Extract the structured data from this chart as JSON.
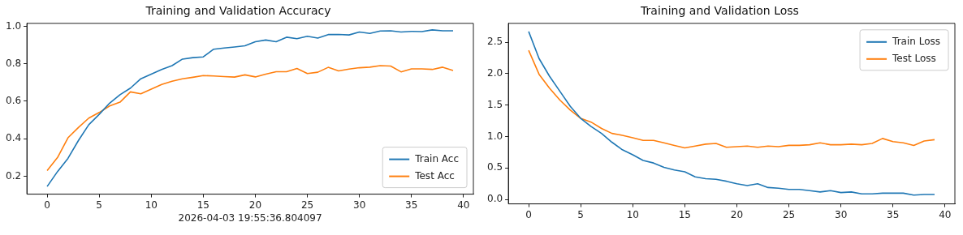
{
  "chart_data": [
    {
      "type": "line",
      "title": "Training and Validation Accuracy",
      "x": [
        0,
        1,
        2,
        3,
        4,
        5,
        6,
        7,
        8,
        9,
        10,
        11,
        12,
        13,
        14,
        15,
        16,
        17,
        18,
        19,
        20,
        21,
        22,
        23,
        24,
        25,
        26,
        27,
        28,
        29,
        30,
        31,
        32,
        33,
        34,
        35,
        36,
        37,
        38,
        39
      ],
      "series": [
        {
          "name": "Train Acc",
          "color": "#1f77b4",
          "values": [
            0.145,
            0.225,
            0.295,
            0.39,
            0.475,
            0.53,
            0.59,
            0.635,
            0.67,
            0.72,
            0.745,
            0.77,
            0.79,
            0.825,
            0.833,
            0.837,
            0.878,
            0.884,
            0.89,
            0.896,
            0.918,
            0.927,
            0.918,
            0.942,
            0.934,
            0.947,
            0.937,
            0.956,
            0.957,
            0.954,
            0.97,
            0.962,
            0.975,
            0.976,
            0.97,
            0.973,
            0.972,
            0.981,
            0.976,
            0.976
          ]
        },
        {
          "name": "Test Acc",
          "color": "#ff7f0e",
          "values": [
            0.23,
            0.3,
            0.405,
            0.46,
            0.51,
            0.54,
            0.575,
            0.595,
            0.65,
            0.64,
            0.665,
            0.69,
            0.707,
            0.72,
            0.728,
            0.737,
            0.735,
            0.732,
            0.729,
            0.741,
            0.73,
            0.745,
            0.758,
            0.758,
            0.775,
            0.748,
            0.755,
            0.781,
            0.762,
            0.772,
            0.779,
            0.782,
            0.79,
            0.788,
            0.757,
            0.773,
            0.773,
            0.77,
            0.782,
            0.764
          ]
        }
      ],
      "xlim": [
        -1.95,
        40.95
      ],
      "xticks": [
        0,
        5,
        10,
        15,
        20,
        25,
        30,
        35,
        40
      ],
      "ylim": [
        0.104,
        1.016
      ],
      "yticks": [
        0.2,
        0.4,
        0.6,
        0.8,
        {
          "value": 1,
          "label": "1.0"
        }
      ],
      "grid": false,
      "legend": "bottom right",
      "marker": "none",
      "line_style": "solid",
      "annotations": [
        "2026-04-03 19:55:36.804097"
      ]
    },
    {
      "type": "line",
      "title": "Training and Validation Loss",
      "x": [
        0,
        1,
        2,
        3,
        4,
        5,
        6,
        7,
        8,
        9,
        10,
        11,
        12,
        13,
        14,
        15,
        16,
        17,
        18,
        19,
        20,
        21,
        22,
        23,
        24,
        25,
        26,
        27,
        28,
        29,
        30,
        31,
        32,
        33,
        34,
        35,
        36,
        37,
        38,
        39
      ],
      "series": [
        {
          "name": "Train Loss",
          "color": "#1f77b4",
          "values": [
            2.67,
            2.24,
            1.96,
            1.72,
            1.48,
            1.29,
            1.16,
            1.05,
            0.91,
            0.79,
            0.71,
            0.62,
            0.58,
            0.51,
            0.47,
            0.44,
            0.36,
            0.33,
            0.32,
            0.29,
            0.25,
            0.22,
            0.25,
            0.19,
            0.18,
            0.16,
            0.16,
            0.14,
            0.12,
            0.14,
            0.11,
            0.12,
            0.09,
            0.09,
            0.1,
            0.1,
            0.1,
            0.07,
            0.08,
            0.08
          ]
        },
        {
          "name": "Test Loss",
          "color": "#ff7f0e",
          "values": [
            2.37,
            1.99,
            1.77,
            1.58,
            1.42,
            1.29,
            1.23,
            1.13,
            1.05,
            1.02,
            0.98,
            0.94,
            0.94,
            0.9,
            0.86,
            0.82,
            0.85,
            0.88,
            0.89,
            0.83,
            0.84,
            0.85,
            0.83,
            0.85,
            0.84,
            0.86,
            0.86,
            0.87,
            0.9,
            0.87,
            0.87,
            0.88,
            0.87,
            0.89,
            0.97,
            0.92,
            0.9,
            0.86,
            0.93,
            0.95
          ]
        }
      ],
      "xlim": [
        -1.95,
        40.95
      ],
      "xticks": [
        0,
        5,
        10,
        15,
        20,
        25,
        30,
        35,
        40
      ],
      "ylim": [
        -0.07,
        2.8
      ],
      "yticks": [
        {
          "value": 0,
          "label": "0.0"
        },
        {
          "value": 0.5,
          "label": "0.5"
        },
        {
          "value": 1,
          "label": "1.0"
        },
        {
          "value": 1.5,
          "label": "1.5"
        },
        {
          "value": 2,
          "label": "2.0"
        },
        {
          "value": 2.5,
          "label": "2.5"
        }
      ],
      "grid": false,
      "legend": "top right",
      "marker": "none",
      "line_style": "solid"
    }
  ]
}
